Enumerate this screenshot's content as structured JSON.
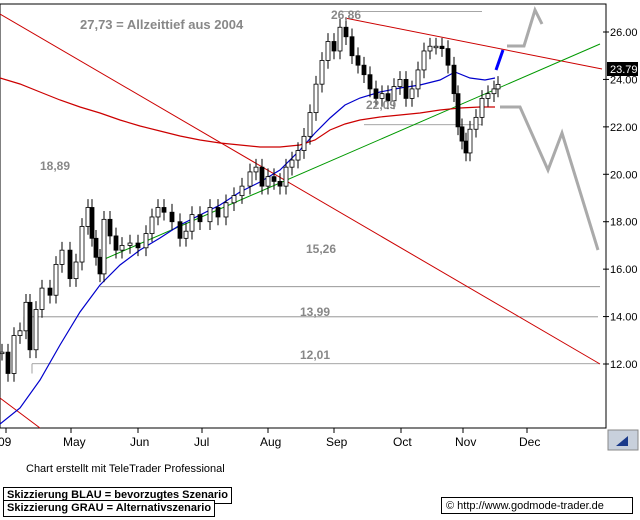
{
  "chart_data": {
    "type": "candlestick",
    "y_axis": {
      "range": [
        10.5,
        27.2
      ],
      "ticks": [
        "12.00",
        "14.00",
        "16.00",
        "18.00",
        "20.00",
        "22.00",
        "24.00",
        "26.00"
      ],
      "position": "right",
      "grid": false
    },
    "x_axis": {
      "labels": [
        "09",
        "May",
        "Jun",
        "Jul",
        "Aug",
        "Sep",
        "Oct",
        "Nov",
        "Dec"
      ]
    },
    "last_price": "23.79",
    "annotations": {
      "all_time_low": "27,73 = Allzeittief aus 2004",
      "high": "26,86",
      "level_1889": "18,89",
      "level_2209": "22,09",
      "level_1526": "15,26",
      "level_1399": "13,99",
      "level_1201": "12,01"
    },
    "horizontal_levels": [
      26.86,
      22.09,
      15.26,
      13.99,
      12.01
    ],
    "series_colors": {
      "price": "#000000",
      "ma_short": "#0000cc",
      "ma_long": "#cc0000",
      "trend_resistance": "#cc0000",
      "trend_support": "#009900",
      "scenario_preferred": "#0000ff",
      "scenario_alternative": "#aaaaaa"
    }
  },
  "footer": {
    "credit": "Chart erstellt mit TeleTrader Professional",
    "legend_blue": "Skizzierung BLAU = bevorzugtes Szenario",
    "legend_gray": "Skizzierung GRAU = Alternativszenario",
    "url": "© http://www.godmode-trader.de"
  }
}
